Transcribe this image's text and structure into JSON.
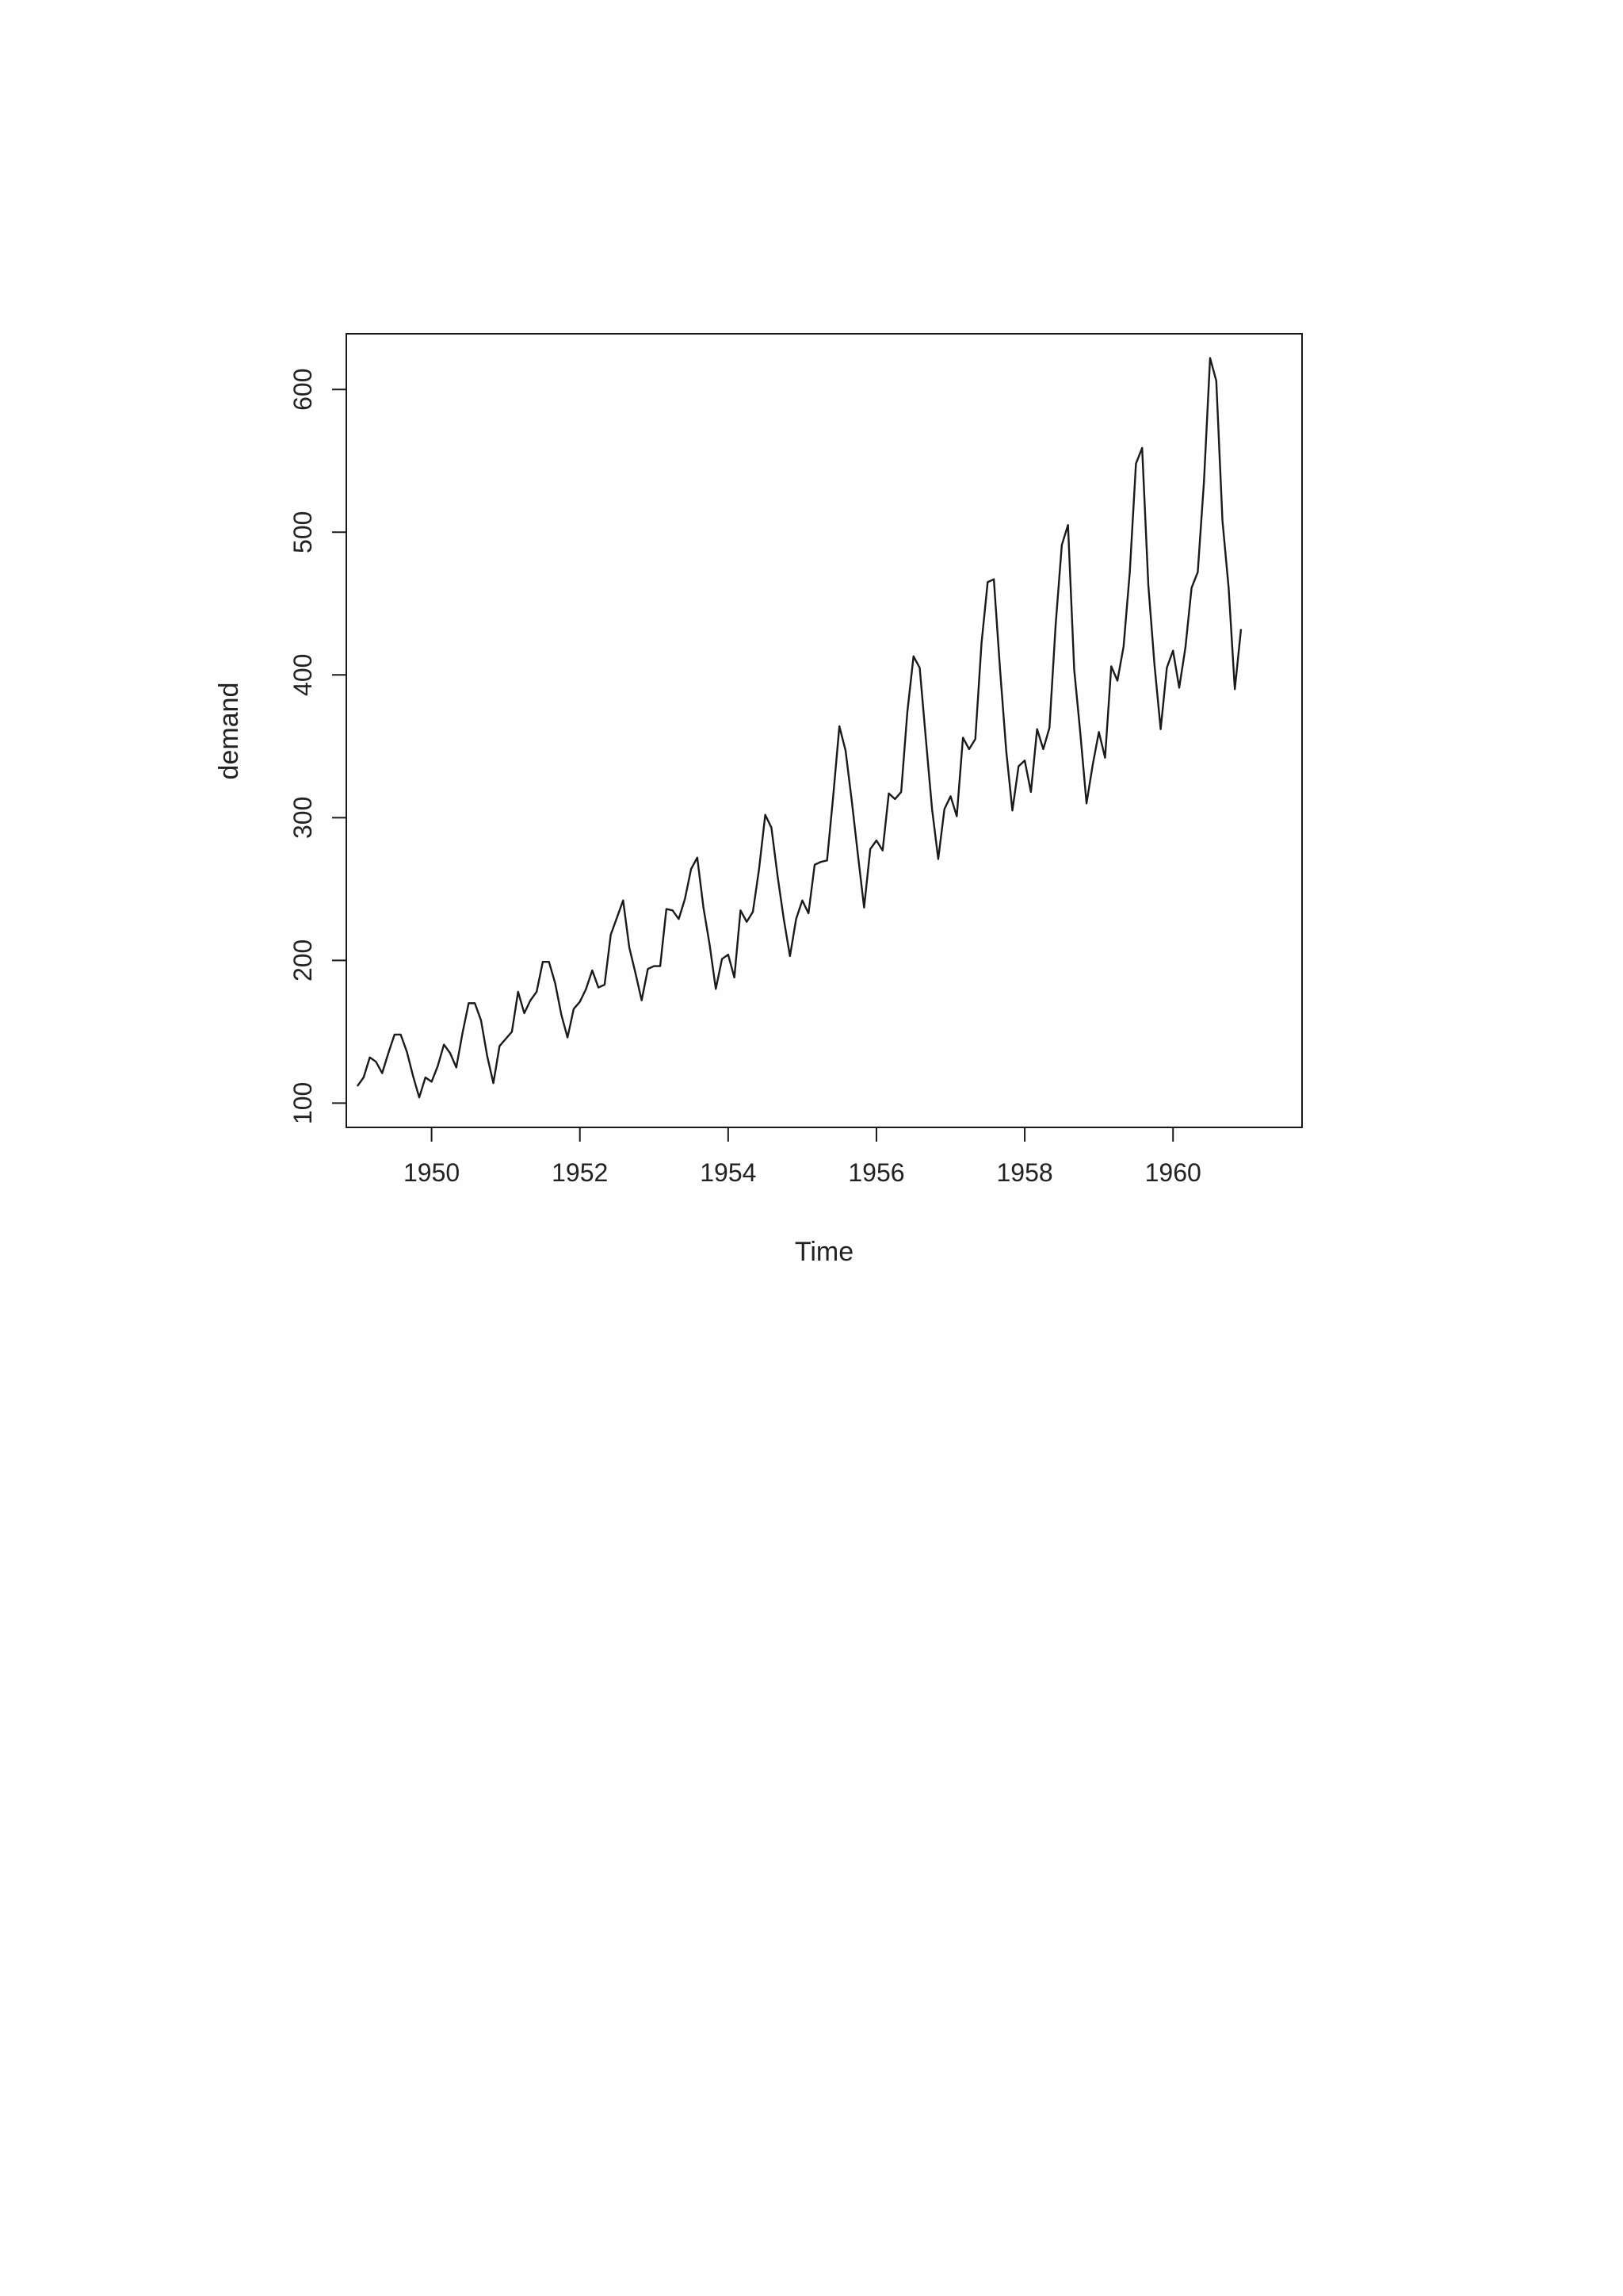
{
  "chart_data": {
    "type": "line",
    "title": "",
    "xlabel": "Time",
    "ylabel": "demand",
    "xlim": [
      1948.85,
      1961.74
    ],
    "ylim": [
      83,
      639
    ],
    "x_ticks": [
      1950,
      1952,
      1954,
      1956,
      1958,
      1960
    ],
    "x_tick_labels": [
      "1950",
      "1952",
      "1954",
      "1956",
      "1958",
      "1960"
    ],
    "y_ticks": [
      100,
      200,
      300,
      400,
      500,
      600
    ],
    "y_tick_labels": [
      "100",
      "200",
      "300",
      "400",
      "500",
      "600"
    ],
    "grid": false,
    "legend": "none",
    "line_color": "#1a1a1a",
    "frame_color": "#1a1a1a",
    "start": 1949,
    "frequency": 12,
    "series": [
      {
        "values": [
          112,
          118,
          132,
          129,
          121,
          135,
          148,
          148,
          136,
          119,
          104,
          118,
          115,
          126,
          141,
          135,
          125,
          149,
          170,
          170,
          158,
          133,
          114,
          140,
          145,
          150,
          178,
          163,
          172,
          178,
          199,
          199,
          184,
          162,
          146,
          166,
          171,
          180,
          193,
          181,
          183,
          218,
          230,
          242,
          209,
          191,
          172,
          194,
          196,
          196,
          236,
          235,
          229,
          243,
          264,
          272,
          237,
          211,
          180,
          201,
          204,
          188,
          235,
          227,
          234,
          264,
          302,
          293,
          259,
          229,
          203,
          229,
          242,
          233,
          267,
          269,
          270,
          315,
          364,
          347,
          312,
          274,
          237,
          278,
          284,
          277,
          317,
          313,
          318,
          374,
          413,
          405,
          355,
          306,
          271,
          306,
          315,
          301,
          356,
          348,
          355,
          422,
          465,
          467,
          404,
          347,
          305,
          336,
          340,
          318,
          362,
          348,
          363,
          435,
          491,
          505,
          404,
          359,
          310,
          337,
          360,
          342,
          406,
          396,
          420,
          472,
          548,
          559,
          463,
          407,
          362,
          405,
          417,
          391,
          419,
          461,
          472,
          535,
          622,
          606,
          508,
          461,
          390,
          432
        ]
      }
    ]
  }
}
